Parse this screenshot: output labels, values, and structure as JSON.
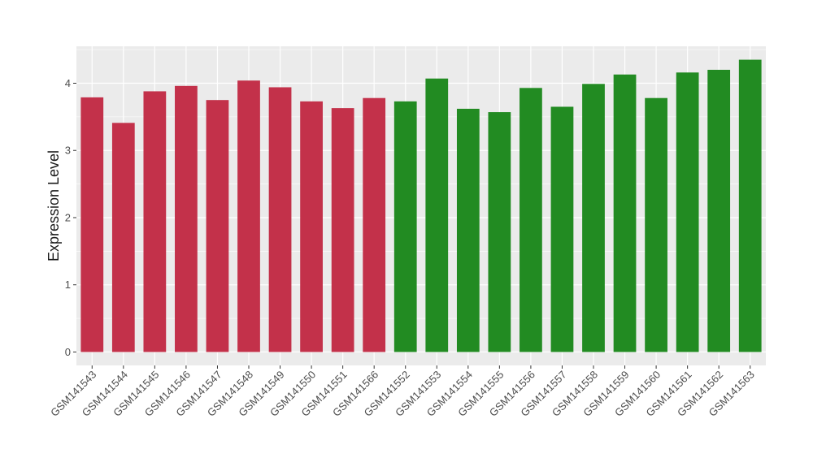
{
  "chart_data": {
    "type": "bar",
    "ylabel": "Expression Level",
    "xlabel": "",
    "ylim": [
      -0.2,
      4.55
    ],
    "yticks": [
      0,
      1,
      2,
      3,
      4
    ],
    "grid": true,
    "legend": "none",
    "panel_color": "#ebebeb",
    "categories": [
      "GSM141543",
      "GSM141544",
      "GSM141545",
      "GSM141546",
      "GSM141547",
      "GSM141548",
      "GSM141549",
      "GSM141550",
      "GSM141551",
      "GSM141566",
      "GSM141552",
      "GSM141553",
      "GSM141554",
      "GSM141555",
      "GSM141556",
      "GSM141557",
      "GSM141558",
      "GSM141559",
      "GSM141560",
      "GSM141561",
      "GSM141562",
      "GSM141563"
    ],
    "values": [
      3.79,
      3.41,
      3.88,
      3.96,
      3.75,
      4.04,
      3.94,
      3.73,
      3.63,
      3.78,
      3.73,
      4.07,
      3.62,
      3.57,
      3.93,
      3.65,
      3.99,
      4.13,
      3.78,
      4.16,
      4.2,
      4.35
    ],
    "colors": [
      "#c3314a",
      "#c3314a",
      "#c3314a",
      "#c3314a",
      "#c3314a",
      "#c3314a",
      "#c3314a",
      "#c3314a",
      "#c3314a",
      "#c3314a",
      "#228b22",
      "#228b22",
      "#228b22",
      "#228b22",
      "#228b22",
      "#228b22",
      "#228b22",
      "#228b22",
      "#228b22",
      "#228b22",
      "#228b22",
      "#228b22"
    ]
  }
}
